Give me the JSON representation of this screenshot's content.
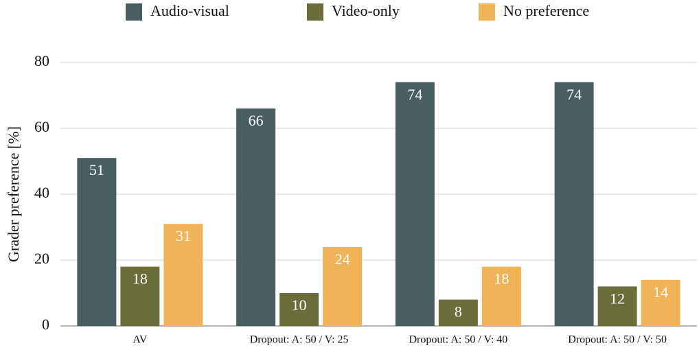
{
  "chart_data": {
    "type": "bar",
    "y_label": "Grader preference [%]",
    "categories": [
      "AV",
      "Dropout: A: 50 / V: 25",
      "Dropout: A: 50 / V: 40",
      "Dropout: A: 50 / V: 50"
    ],
    "series": [
      {
        "name": "Audio-visual",
        "color": "#4a5e62",
        "values": [
          51,
          66,
          74,
          74
        ]
      },
      {
        "name": "Video-only",
        "color": "#6b6e3b",
        "values": [
          18,
          10,
          8,
          12
        ]
      },
      {
        "name": "No preference",
        "color": "#f0b358",
        "values": [
          31,
          24,
          18,
          14
        ]
      }
    ],
    "ylim": [
      0,
      80
    ],
    "yticks": [
      0,
      20,
      40,
      60,
      80
    ],
    "grid": true,
    "legend": "top"
  }
}
